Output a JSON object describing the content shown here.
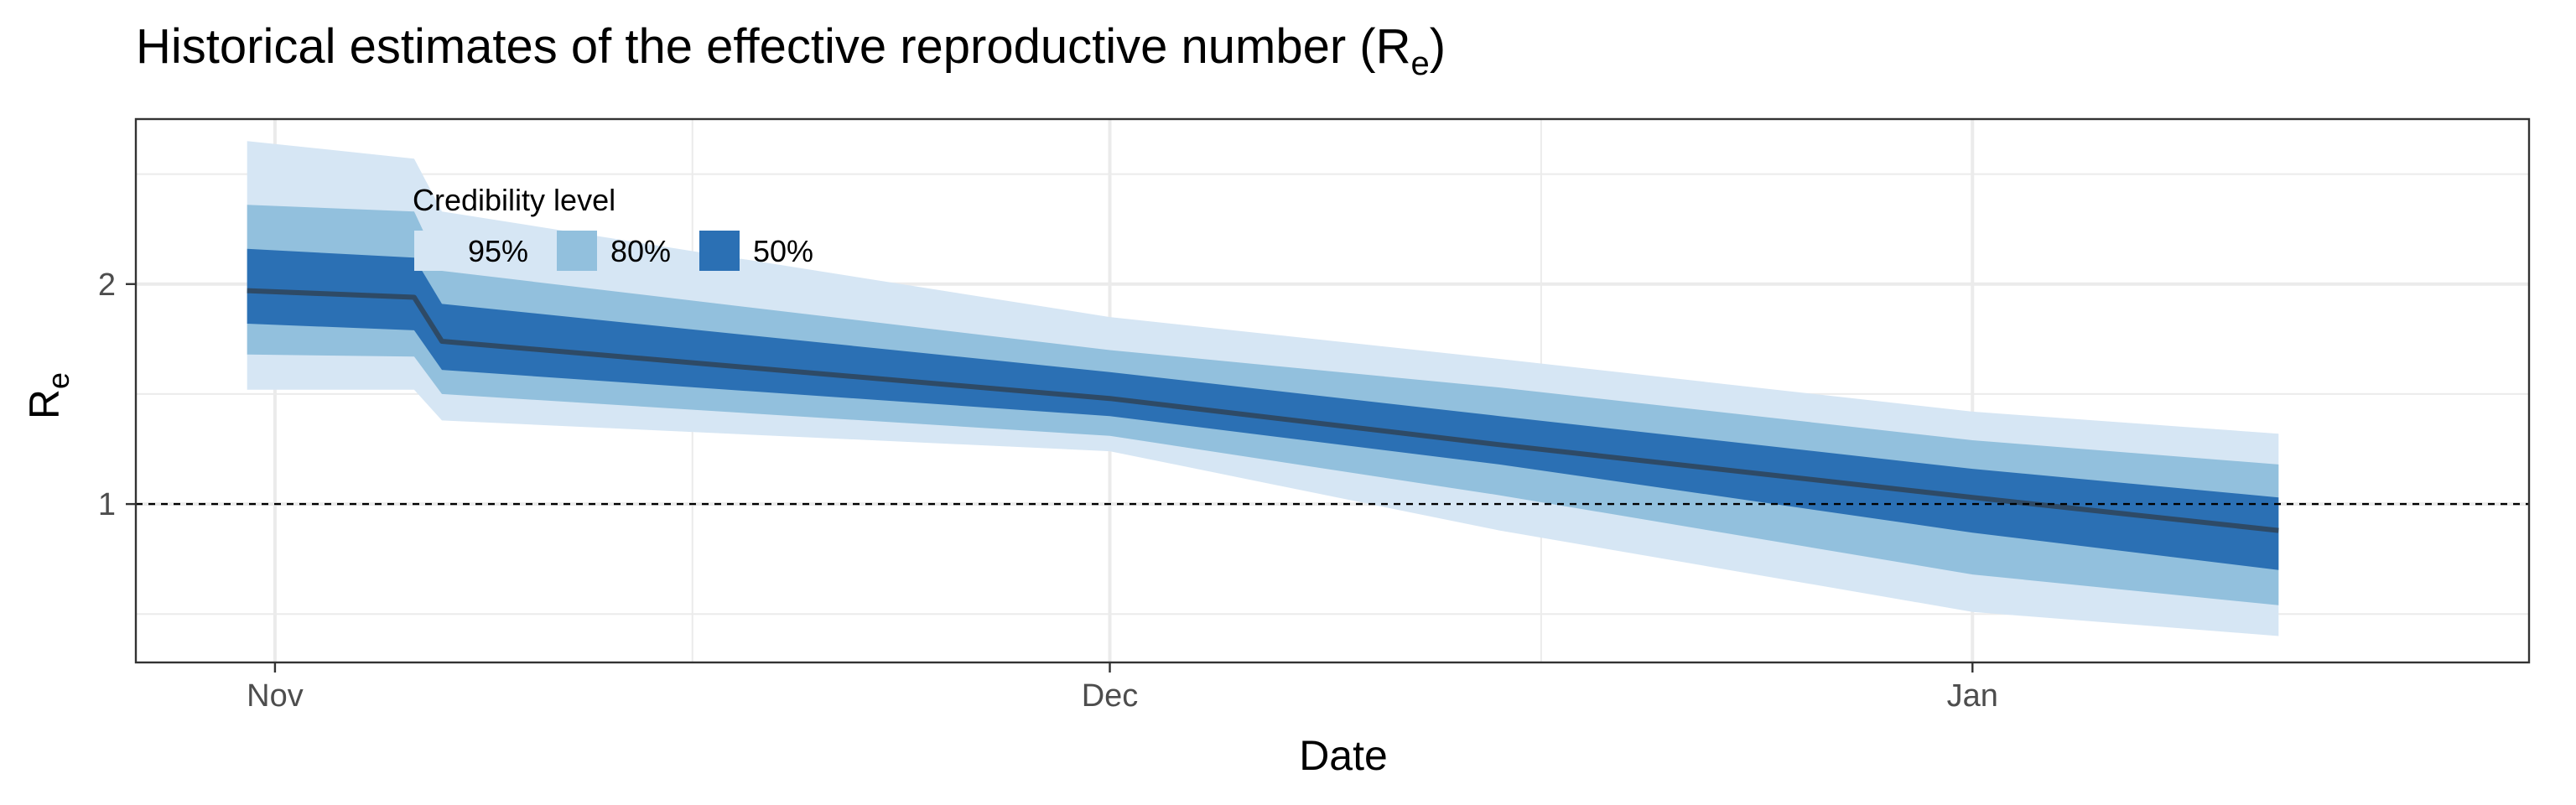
{
  "chart_data": {
    "type": "area",
    "title": "Historical estimates of the effective reproductive number (R",
    "title_subscript": "e",
    "title_close": ")",
    "xlabel": "Date",
    "ylabel": "R",
    "ylabel_subscript": "e",
    "x_ticks": [
      {
        "date": "2020-11-01",
        "label": "Nov"
      },
      {
        "date": "2020-12-01",
        "label": "Dec"
      },
      {
        "date": "2021-01-01",
        "label": "Jan"
      }
    ],
    "y_ticks": [
      1,
      2
    ],
    "xlim": [
      "2020-10-27",
      "2021-01-21"
    ],
    "ylim": [
      0.28,
      2.75
    ],
    "reference_line": {
      "y": 1,
      "style": "dashed",
      "color": "#000000"
    },
    "grid": true,
    "legend": {
      "title": "Credibility level",
      "placement": "top-left",
      "entries": [
        {
          "label": "95%",
          "color": "#d6e6f4"
        },
        {
          "label": "80%",
          "color": "#92c0dd"
        },
        {
          "label": "50%",
          "color": "#2b70b4"
        }
      ]
    },
    "median_color": "#2e4a66",
    "series": [
      {
        "x": [
          "2020-10-31",
          "2020-11-06",
          "2020-11-07",
          "2020-12-01",
          "2020-12-15",
          "2021-01-01",
          "2021-01-12"
        ],
        "median": [
          1.97,
          1.94,
          1.74,
          1.48,
          1.27,
          1.03,
          0.88
        ],
        "lower_50": [
          1.82,
          1.79,
          1.61,
          1.4,
          1.18,
          0.87,
          0.7
        ],
        "upper_50": [
          2.16,
          2.12,
          1.91,
          1.6,
          1.4,
          1.16,
          1.03
        ],
        "lower_80": [
          1.68,
          1.67,
          1.5,
          1.31,
          1.04,
          0.68,
          0.54
        ],
        "upper_80": [
          2.36,
          2.33,
          2.06,
          1.7,
          1.53,
          1.29,
          1.18
        ],
        "lower_95": [
          1.52,
          1.52,
          1.38,
          1.24,
          0.88,
          0.51,
          0.4
        ],
        "upper_95": [
          2.65,
          2.57,
          2.33,
          1.85,
          1.66,
          1.42,
          1.32
        ]
      }
    ]
  }
}
